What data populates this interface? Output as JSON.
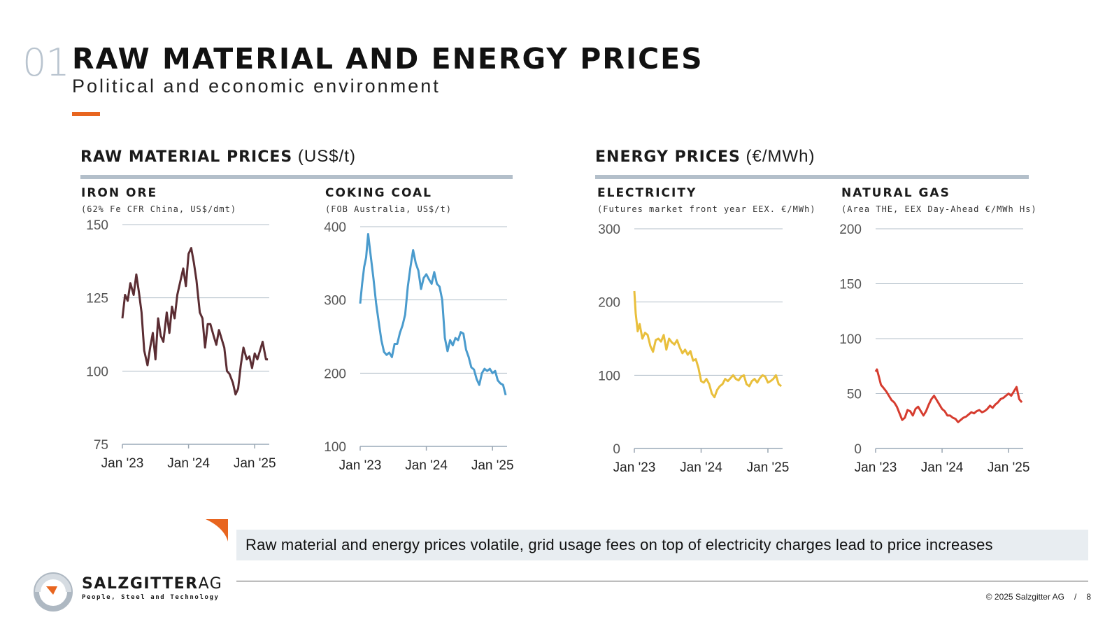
{
  "page": {
    "section_number": "01",
    "title": "RAW MATERIAL AND ENERGY PRICES",
    "subtitle": "Political and economic environment"
  },
  "groups": {
    "raw": {
      "title": "RAW MATERIAL PRICES",
      "unit": "(US$/t)"
    },
    "energy": {
      "title": "ENERGY PRICES",
      "unit": "(€/MWh)"
    }
  },
  "callout": "Raw material and energy prices volatile, grid usage fees on top of electricity charges lead to price increases",
  "footer": {
    "copyright": "© 2025 Salzgitter AG",
    "separator": "/",
    "page_number": "8"
  },
  "logo": {
    "word_bold": "SALZGITTER",
    "word_light": "AG",
    "tagline": "People, Steel and Technology"
  },
  "colors": {
    "accent": "#e8651f",
    "rule": "#b3bfca",
    "callout_bg": "#e8edf1",
    "grid": "#b3bfca"
  },
  "chart_data": [
    {
      "id": "iron_ore",
      "type": "line",
      "title": "IRON ORE",
      "subtitle": "(62% Fe CFR China, US$/dmt)",
      "color": "#5b2d33",
      "x_ticks": [
        "Jan '23",
        "Jan '24",
        "Jan '25"
      ],
      "xlim": [
        2023.0,
        2025.22
      ],
      "ylim": [
        75,
        150
      ],
      "y_ticks": [
        75,
        100,
        125,
        150
      ],
      "series": [
        {
          "name": "Iron ore",
          "x": [
            2023.0,
            2023.04,
            2023.08,
            2023.12,
            2023.17,
            2023.21,
            2023.25,
            2023.29,
            2023.33,
            2023.38,
            2023.42,
            2023.46,
            2023.5,
            2023.54,
            2023.58,
            2023.62,
            2023.67,
            2023.71,
            2023.75,
            2023.79,
            2023.83,
            2023.88,
            2023.92,
            2023.96,
            2024.0,
            2024.04,
            2024.08,
            2024.12,
            2024.17,
            2024.21,
            2024.25,
            2024.29,
            2024.33,
            2024.38,
            2024.42,
            2024.46,
            2024.5,
            2024.54,
            2024.58,
            2024.62,
            2024.67,
            2024.71,
            2024.75,
            2024.79,
            2024.83,
            2024.88,
            2024.92,
            2024.96,
            2025.0,
            2025.04,
            2025.08,
            2025.12,
            2025.17,
            2025.2
          ],
          "y": [
            118,
            126,
            124,
            130,
            126,
            133,
            127,
            120,
            107,
            102,
            108,
            113,
            104,
            118,
            112,
            110,
            120,
            113,
            122,
            118,
            126,
            131,
            135,
            129,
            140,
            142,
            137,
            131,
            120,
            118,
            108,
            116,
            116,
            112,
            109,
            114,
            111,
            108,
            100,
            99,
            96,
            92,
            94,
            102,
            108,
            104,
            105,
            101,
            106,
            104,
            107,
            110,
            104,
            104
          ]
        }
      ]
    },
    {
      "id": "coking_coal",
      "type": "line",
      "title": "COKING COAL",
      "subtitle": "(FOB Australia, US$/t)",
      "color": "#4a9bcd",
      "x_ticks": [
        "Jan '23",
        "Jan '24",
        "Jan '25"
      ],
      "xlim": [
        2023.0,
        2025.22
      ],
      "ylim": [
        100,
        400
      ],
      "y_ticks": [
        100,
        200,
        300,
        400
      ],
      "series": [
        {
          "name": "Coking coal",
          "x": [
            2023.0,
            2023.03,
            2023.06,
            2023.09,
            2023.12,
            2023.16,
            2023.2,
            2023.24,
            2023.28,
            2023.32,
            2023.36,
            2023.4,
            2023.44,
            2023.48,
            2023.52,
            2023.56,
            2023.6,
            2023.64,
            2023.68,
            2023.72,
            2023.76,
            2023.8,
            2023.84,
            2023.88,
            2023.92,
            2023.96,
            2024.0,
            2024.04,
            2024.08,
            2024.12,
            2024.16,
            2024.2,
            2024.24,
            2024.28,
            2024.32,
            2024.36,
            2024.4,
            2024.44,
            2024.48,
            2024.52,
            2024.56,
            2024.6,
            2024.64,
            2024.68,
            2024.72,
            2024.76,
            2024.8,
            2024.84,
            2024.88,
            2024.92,
            2024.96,
            2025.0,
            2025.04,
            2025.08,
            2025.12,
            2025.16,
            2025.2
          ],
          "y": [
            295,
            322,
            345,
            358,
            390,
            360,
            330,
            296,
            270,
            245,
            229,
            225,
            228,
            222,
            240,
            240,
            255,
            265,
            280,
            318,
            345,
            368,
            350,
            340,
            315,
            330,
            335,
            328,
            322,
            338,
            322,
            318,
            300,
            248,
            230,
            245,
            238,
            248,
            245,
            256,
            254,
            232,
            222,
            208,
            205,
            192,
            184,
            200,
            206,
            203,
            206,
            200,
            203,
            190,
            186,
            184,
            170
          ]
        }
      ]
    },
    {
      "id": "electricity",
      "type": "line",
      "title": "ELECTRICITY",
      "subtitle": "(Futures market front year EEX. €/MWh)",
      "color": "#e9bf3c",
      "x_ticks": [
        "Jan '23",
        "Jan '24",
        "Jan '25"
      ],
      "xlim": [
        2023.0,
        2025.22
      ],
      "ylim": [
        0,
        300
      ],
      "y_ticks": [
        0,
        100,
        200,
        300
      ],
      "series": [
        {
          "name": "Electricity",
          "x": [
            2023.0,
            2023.02,
            2023.05,
            2023.08,
            2023.12,
            2023.16,
            2023.2,
            2023.24,
            2023.28,
            2023.32,
            2023.36,
            2023.4,
            2023.44,
            2023.48,
            2023.52,
            2023.56,
            2023.6,
            2023.64,
            2023.68,
            2023.72,
            2023.76,
            2023.8,
            2023.84,
            2023.88,
            2023.92,
            2023.96,
            2024.0,
            2024.04,
            2024.08,
            2024.12,
            2024.16,
            2024.2,
            2024.24,
            2024.28,
            2024.32,
            2024.36,
            2024.4,
            2024.44,
            2024.48,
            2024.52,
            2024.56,
            2024.6,
            2024.64,
            2024.68,
            2024.72,
            2024.76,
            2024.8,
            2024.84,
            2024.88,
            2024.92,
            2024.96,
            2025.0,
            2025.04,
            2025.08,
            2025.12,
            2025.16,
            2025.2
          ],
          "y": [
            215,
            185,
            160,
            170,
            150,
            158,
            155,
            140,
            132,
            148,
            150,
            146,
            155,
            135,
            150,
            145,
            142,
            148,
            138,
            130,
            135,
            128,
            133,
            120,
            122,
            110,
            92,
            90,
            95,
            88,
            75,
            70,
            80,
            85,
            88,
            95,
            92,
            96,
            100,
            95,
            93,
            98,
            100,
            88,
            85,
            92,
            95,
            90,
            96,
            100,
            98,
            90,
            92,
            95,
            100,
            88,
            85
          ]
        }
      ]
    },
    {
      "id": "natural_gas",
      "type": "line",
      "title": "NATURAL GAS",
      "subtitle": "(Area THE, EEX Day-Ahead €/MWh Hs)",
      "color": "#d63c2f",
      "x_ticks": [
        "Jan '23",
        "Jan '24",
        "Jan '25"
      ],
      "xlim": [
        2023.0,
        2025.22
      ],
      "ylim": [
        0,
        200
      ],
      "y_ticks": [
        0,
        50,
        100,
        150,
        200
      ],
      "series": [
        {
          "name": "Natural gas",
          "x": [
            2023.0,
            2023.02,
            2023.05,
            2023.08,
            2023.12,
            2023.16,
            2023.2,
            2023.24,
            2023.28,
            2023.32,
            2023.36,
            2023.4,
            2023.44,
            2023.48,
            2023.52,
            2023.56,
            2023.6,
            2023.64,
            2023.68,
            2023.72,
            2023.76,
            2023.8,
            2023.84,
            2023.88,
            2023.92,
            2023.96,
            2024.0,
            2024.04,
            2024.08,
            2024.12,
            2024.16,
            2024.2,
            2024.24,
            2024.28,
            2024.32,
            2024.36,
            2024.4,
            2024.44,
            2024.48,
            2024.52,
            2024.56,
            2024.6,
            2024.64,
            2024.68,
            2024.72,
            2024.76,
            2024.8,
            2024.84,
            2024.88,
            2024.92,
            2024.96,
            2025.0,
            2025.04,
            2025.08,
            2025.12,
            2025.16,
            2025.2
          ],
          "y": [
            70,
            72,
            65,
            58,
            55,
            52,
            48,
            44,
            42,
            38,
            32,
            26,
            28,
            35,
            34,
            30,
            36,
            38,
            34,
            30,
            34,
            40,
            45,
            48,
            44,
            40,
            36,
            34,
            30,
            30,
            28,
            27,
            24,
            26,
            28,
            29,
            31,
            33,
            32,
            34,
            35,
            33,
            34,
            36,
            39,
            37,
            40,
            42,
            45,
            46,
            48,
            50,
            48,
            52,
            56,
            45,
            42
          ]
        }
      ]
    }
  ]
}
